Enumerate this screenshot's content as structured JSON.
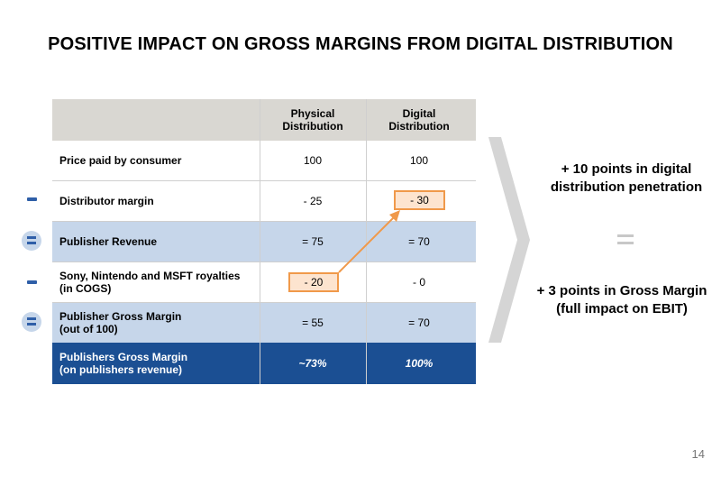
{
  "title": "POSITIVE IMPACT ON GROSS MARGINS FROM DIGITAL DISTRIBUTION",
  "table": {
    "columns": [
      "",
      "Physical\nDistribution",
      "Digital\nDistribution"
    ],
    "col_physical": "Physical\nDistribution",
    "col_digital": "Digital\nDistribution",
    "rows": [
      {
        "label": "Price paid by consumer",
        "physical": "100",
        "digital": "100",
        "operator": ""
      },
      {
        "label": "Distributor margin",
        "physical": "- 25",
        "digital": "- 30",
        "operator": "minus"
      },
      {
        "label": "Publisher Revenue",
        "physical": "= 75",
        "digital": "= 70",
        "operator": "equals"
      },
      {
        "label": "Sony, Nintendo and MSFT royalties\n(in COGS)",
        "physical": "- 20",
        "digital": "- 0",
        "operator": "minus"
      },
      {
        "label": "Publisher Gross Margin\n(out of 100)",
        "physical": "= 55",
        "digital": "= 70",
        "operator": "equals"
      },
      {
        "label": "Publishers Gross Margin\n(on publishers revenue)",
        "physical": "~73%",
        "digital": "100%",
        "operator": ""
      }
    ]
  },
  "right": {
    "line1": "+ 10 points in digital\ndistribution penetration",
    "line2": "+ 3 points in Gross Margin\n(full impact on EBIT)"
  },
  "page_number": "14",
  "colors": {
    "header_bg": "#d9d7d2",
    "highlight_row": "#c6d6ea",
    "final_row": "#1b4f93",
    "box_border": "#f0994a",
    "box_fill": "#fde4cf",
    "arrow": "#f0994a",
    "operator": "#2f5fa8"
  }
}
